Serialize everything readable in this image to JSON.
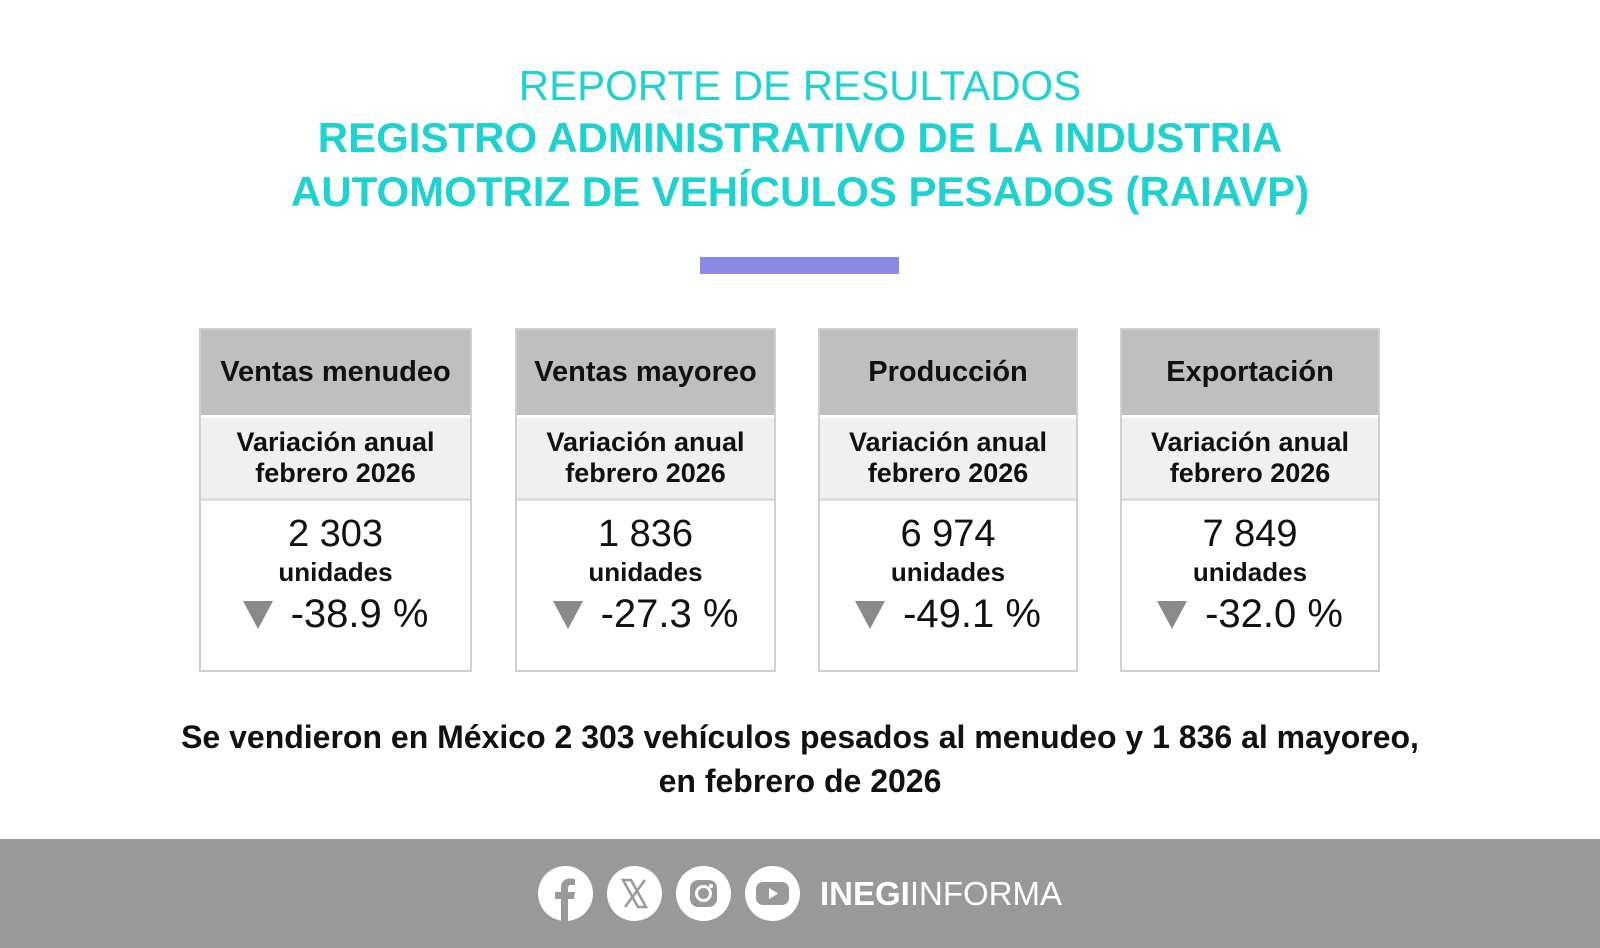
{
  "header": {
    "line1": "REPORTE DE RESULTADOS",
    "line2": "REGISTRO ADMINISTRATIVO DE LA INDUSTRIA",
    "line3": "AUTOMOTRIZ DE VEHÍCULOS PESADOS (RAIAVP)"
  },
  "colors": {
    "title": "#1fd1cf",
    "accent_bar": "#8a8ae6",
    "footer": "#999999",
    "down_arrow": "#8a8a8a"
  },
  "cards": [
    {
      "title": "Ventas menudeo",
      "sub1": "Variación anual",
      "sub2": "febrero 2026",
      "value": "2 303",
      "unit": "unidades",
      "change": "-38.9 %",
      "trend": "down"
    },
    {
      "title": "Ventas mayoreo",
      "sub1": "Variación anual",
      "sub2": "febrero 2026",
      "value": "1 836",
      "unit": "unidades",
      "change": "-27.3 %",
      "trend": "down"
    },
    {
      "title": "Producción",
      "sub1": "Variación anual",
      "sub2": "febrero 2026",
      "value": "6 974",
      "unit": "unidades",
      "change": "-49.1 %",
      "trend": "down"
    },
    {
      "title": "Exportación",
      "sub1": "Variación anual",
      "sub2": "febrero 2026",
      "value": "7 849",
      "unit": "unidades",
      "change": "-32.0 %",
      "trend": "down"
    }
  ],
  "summary": {
    "line1": "Se vendieron en México 2 303 vehículos pesados al menudeo y 1 836 al mayoreo,",
    "line2": "en febrero de 2026"
  },
  "footer": {
    "icons": [
      "facebook-icon",
      "x-icon",
      "instagram-icon",
      "youtube-icon"
    ],
    "brand_bold": "INEGI",
    "brand_light": "INFORMA"
  }
}
